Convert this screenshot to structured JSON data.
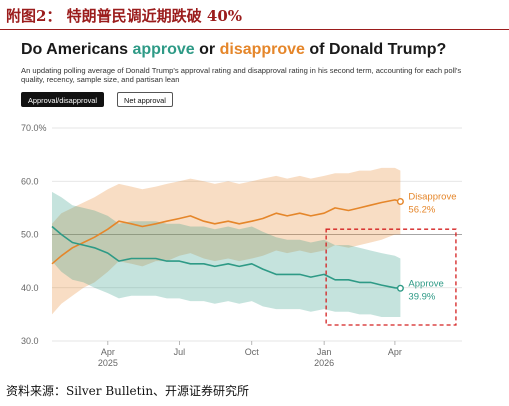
{
  "header": {
    "figure_label": "附图2：  特朗普民调近期跌破 40%"
  },
  "card": {
    "title_prefix": "Do Americans ",
    "title_approve": "approve",
    "title_or": " or ",
    "title_disapprove": "disapprove",
    "title_suffix": " of Donald Trump?",
    "subtitle": "An updating polling average of Donald Trump's approval rating and disapproval rating in his second term, accounting for each poll's quality, recency, sample size, and partisan lean",
    "buttons": {
      "approval_disapproval": "Approval/disapproval",
      "net_approval": "Net approval"
    }
  },
  "colors": {
    "approve": "#2e9a86",
    "disapprove": "#e5862a",
    "highlight_box": "#d42020"
  },
  "footer": {
    "source": "资料来源：Silver Bulletin、开源证券研究所"
  },
  "chart_data": {
    "type": "line",
    "ylim": [
      30,
      70
    ],
    "yticks": [
      "70.0%",
      "60.0",
      "50.0",
      "40.0",
      "30.0"
    ],
    "ytick_values": [
      70,
      60,
      50,
      40,
      30
    ],
    "xlim": [
      "2025-01-20",
      "2026-04-10"
    ],
    "xticks": [
      {
        "date": "2025-04-01",
        "label": "Apr",
        "sub": "2025"
      },
      {
        "date": "2025-07-01",
        "label": "Jul",
        "sub": ""
      },
      {
        "date": "2025-10-01",
        "label": "Oct",
        "sub": ""
      },
      {
        "date": "2026-01-01",
        "label": "Jan",
        "sub": "2026"
      },
      {
        "date": "2026-04-01",
        "label": "Apr",
        "sub": ""
      }
    ],
    "grid": true,
    "series": [
      {
        "name": "Disapprove",
        "end_label": "56.2%",
        "x": [
          "2025-01-20",
          "2025-02-01",
          "2025-02-15",
          "2025-03-01",
          "2025-03-15",
          "2025-04-01",
          "2025-04-15",
          "2025-05-01",
          "2025-05-15",
          "2025-06-01",
          "2025-06-15",
          "2025-07-01",
          "2025-07-15",
          "2025-08-01",
          "2025-08-15",
          "2025-09-01",
          "2025-09-15",
          "2025-10-01",
          "2025-10-15",
          "2025-11-01",
          "2025-11-15",
          "2025-12-01",
          "2025-12-15",
          "2026-01-01",
          "2026-01-15",
          "2026-02-01",
          "2026-02-15",
          "2026-03-01",
          "2026-03-15",
          "2026-04-01",
          "2026-04-08"
        ],
        "values": [
          44.5,
          46,
          47.5,
          48.5,
          49.5,
          51,
          52.5,
          52,
          51.5,
          52,
          52.5,
          53,
          53.5,
          52.5,
          52,
          52.5,
          52,
          52.5,
          53,
          54,
          53.5,
          54,
          53.5,
          54,
          55,
          54.5,
          55,
          55.5,
          56,
          56.5,
          56.2
        ],
        "band_low": [
          35,
          37,
          38.5,
          40,
          41,
          43,
          45,
          44.5,
          44,
          45,
          45,
          46,
          46.5,
          45.5,
          45,
          45.5,
          45,
          45.5,
          46,
          47,
          46.5,
          47,
          46.5,
          47,
          48,
          47.5,
          48,
          48.5,
          49,
          50,
          50
        ],
        "band_high": [
          52,
          54,
          55,
          56,
          57,
          58.5,
          59.5,
          59,
          58.5,
          59,
          59.5,
          60,
          60.5,
          60,
          59.5,
          60,
          59.5,
          60,
          60.5,
          61,
          60.5,
          61,
          60.5,
          61,
          61.5,
          61.5,
          62,
          62,
          62.5,
          62.5,
          62
        ]
      },
      {
        "name": "Approve",
        "end_label": "39.9%",
        "x": [
          "2025-01-20",
          "2025-02-01",
          "2025-02-15",
          "2025-03-01",
          "2025-03-15",
          "2025-04-01",
          "2025-04-15",
          "2025-05-01",
          "2025-05-15",
          "2025-06-01",
          "2025-06-15",
          "2025-07-01",
          "2025-07-15",
          "2025-08-01",
          "2025-08-15",
          "2025-09-01",
          "2025-09-15",
          "2025-10-01",
          "2025-10-15",
          "2025-11-01",
          "2025-11-15",
          "2025-12-01",
          "2025-12-15",
          "2026-01-01",
          "2026-01-15",
          "2026-02-01",
          "2026-02-15",
          "2026-03-01",
          "2026-03-15",
          "2026-04-01",
          "2026-04-08"
        ],
        "values": [
          51.5,
          50,
          48.5,
          48,
          47.5,
          46.5,
          45,
          45.5,
          45.5,
          45.5,
          45,
          45,
          44.5,
          44.5,
          44,
          44.5,
          44,
          44.5,
          43.5,
          42.5,
          42.5,
          42.5,
          42,
          42.5,
          41.5,
          41.5,
          41,
          41,
          40.5,
          40,
          39.9
        ],
        "band_low": [
          45,
          43,
          41.5,
          41,
          40,
          39,
          38,
          38.5,
          38.5,
          38.5,
          38,
          38,
          37.5,
          37.5,
          37,
          37.5,
          37,
          37.5,
          36.5,
          36,
          36,
          36,
          35.5,
          36,
          35.5,
          35.5,
          35,
          35,
          34.5,
          34.5,
          34.5
        ],
        "band_high": [
          58,
          57,
          55.5,
          55,
          54.5,
          53.5,
          52,
          52.5,
          52.5,
          52.5,
          52,
          52,
          51.5,
          51.5,
          51,
          51.5,
          51,
          51.5,
          50.5,
          49.5,
          49,
          49,
          48.5,
          49,
          48,
          48,
          47.5,
          47,
          46.5,
          46,
          45.5
        ]
      }
    ],
    "highlight": {
      "x_start": "2026-01-01",
      "x_end": "2026-04-15",
      "y_low": 33,
      "y_high": 51
    }
  }
}
